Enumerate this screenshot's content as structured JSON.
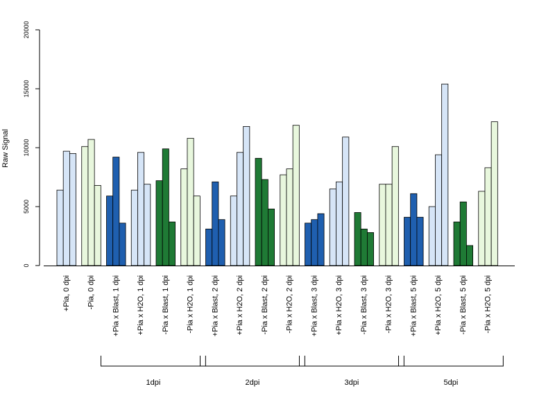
{
  "chart_data": {
    "type": "bar",
    "ylabel": "Raw Signal",
    "ylim": [
      0,
      20000
    ],
    "yticks": [
      0,
      5000,
      10000,
      15000,
      20000
    ],
    "bars_per_group": 3,
    "categories": [
      "+Pia, 0 dpi",
      "-Pia, 0 dpi",
      "+Pia x Blast, 1 dpi",
      "+Pia x H2O, 1 dpi",
      "-Pia x Blast, 1 dpi",
      "-Pia x H2O, 1 dpi",
      "+Pia x Blast, 2 dpi",
      "+Pia x H2O, 2 dpi",
      "-Pia x Blast, 2 dpi",
      "-Pia x H2O, 2 dpi",
      "+Pia x Blast, 3 dpi",
      "+Pia x H2O, 3 dpi",
      "-Pia x Blast, 3 dpi",
      "-Pia x H2O, 3 dpi",
      "+Pia x Blast, 5 dpi",
      "+Pia x H2O, 5 dpi",
      "-Pia x Blast, 5 dpi",
      "-Pia x H2O, 5 dpi"
    ],
    "values": [
      [
        6400,
        9700,
        9500
      ],
      [
        10100,
        10700,
        6800
      ],
      [
        5900,
        9200,
        3600
      ],
      [
        6400,
        9600,
        6900
      ],
      [
        7200,
        9900,
        3700
      ],
      [
        8200,
        10800,
        5900
      ],
      [
        3100,
        7100,
        3900
      ],
      [
        5900,
        9600,
        11800
      ],
      [
        9100,
        7300,
        4800
      ],
      [
        7700,
        8200,
        11900
      ],
      [
        3600,
        3900,
        4400
      ],
      [
        6500,
        7100,
        10900
      ],
      [
        4500,
        3100,
        2800
      ],
      [
        6900,
        6900,
        10100
      ],
      [
        4100,
        6100,
        4100
      ],
      [
        5000,
        9400,
        15400
      ],
      [
        3700,
        5400,
        1700
      ],
      [
        6300,
        8300,
        12200
      ]
    ],
    "group_colors": [
      "#d6e5f7",
      "#e8f7dd",
      "#1f5faf",
      "#d6e5f7",
      "#1f7a35",
      "#e8f7dd",
      "#1f5faf",
      "#d6e5f7",
      "#1f7a35",
      "#e8f7dd",
      "#1f5faf",
      "#d6e5f7",
      "#1f7a35",
      "#e8f7dd",
      "#1f5faf",
      "#d6e5f7",
      "#1f7a35",
      "#e8f7dd"
    ],
    "timepoint_groups": [
      {
        "label": "1dpi",
        "first_category": 2,
        "last_category": 5
      },
      {
        "label": "2dpi",
        "first_category": 6,
        "last_category": 9
      },
      {
        "label": "3dpi",
        "first_category": 10,
        "last_category": 13
      },
      {
        "label": "5dpi",
        "first_category": 14,
        "last_category": 17
      }
    ]
  }
}
